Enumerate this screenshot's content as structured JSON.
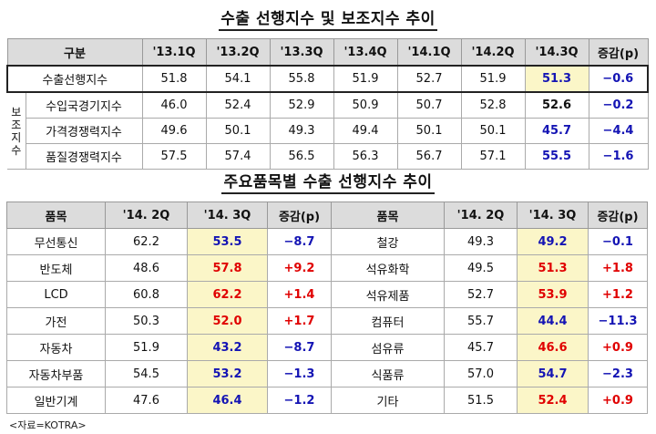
{
  "table1": {
    "title": "수출 선행지수 및 보조지수 추이",
    "headers": [
      "구분",
      "'13.1Q",
      "'13.2Q",
      "'13.3Q",
      "'13.4Q",
      "'14.1Q",
      "'14.2Q",
      "'14.3Q",
      "증감(p)"
    ],
    "group_label": "보조지수",
    "main_row": {
      "label": "수출선행지수",
      "values": [
        "51.8",
        "54.1",
        "55.8",
        "51.9",
        "52.7",
        "51.9",
        "51.3"
      ],
      "change": "−0.6"
    },
    "sub_rows": [
      {
        "label": "수입국경기지수",
        "values": [
          "46.0",
          "52.4",
          "52.9",
          "50.9",
          "50.7",
          "52.8",
          "52.6"
        ],
        "change": "−0.2"
      },
      {
        "label": "가격경쟁력지수",
        "values": [
          "49.6",
          "50.1",
          "49.3",
          "49.4",
          "50.1",
          "50.1",
          "45.7"
        ],
        "change": "−4.4"
      },
      {
        "label": "품질경쟁력지수",
        "values": [
          "57.5",
          "57.4",
          "56.5",
          "56.3",
          "56.7",
          "57.1",
          "55.5"
        ],
        "change": "−1.6"
      }
    ]
  },
  "table2": {
    "title": "주요품목별 수출 선행지수 추이",
    "headers": [
      "품목",
      "'14. 2Q",
      "'14. 3Q",
      "증감(p)",
      "품목",
      "'14. 2Q",
      "'14. 3Q",
      "증감(p)"
    ],
    "rows": [
      {
        "l_item": "무선통신",
        "l_q2": "62.2",
        "l_q3": "53.5",
        "l_chg": "−8.7",
        "r_item": "철강",
        "r_q2": "49.3",
        "r_q3": "49.2",
        "r_chg": "−0.1"
      },
      {
        "l_item": "반도체",
        "l_q2": "48.6",
        "l_q3": "57.8",
        "l_chg": "+9.2",
        "r_item": "석유화학",
        "r_q2": "49.5",
        "r_q3": "51.3",
        "r_chg": "+1.8"
      },
      {
        "l_item": "LCD",
        "l_q2": "60.8",
        "l_q3": "62.2",
        "l_chg": "+1.4",
        "r_item": "석유제품",
        "r_q2": "52.7",
        "r_q3": "53.9",
        "r_chg": "+1.2"
      },
      {
        "l_item": "가전",
        "l_q2": "50.3",
        "l_q3": "52.0",
        "l_chg": "+1.7",
        "r_item": "컴퓨터",
        "r_q2": "55.7",
        "r_q3": "44.4",
        "r_chg": "−11.3"
      },
      {
        "l_item": "자동차",
        "l_q2": "51.9",
        "l_q3": "43.2",
        "l_chg": "−8.7",
        "r_item": "섬유류",
        "r_q2": "45.7",
        "r_q3": "46.6",
        "r_chg": "+0.9"
      },
      {
        "l_item": "자동차부품",
        "l_q2": "54.5",
        "l_q3": "53.2",
        "l_chg": "−1.3",
        "r_item": "식품류",
        "r_q2": "57.0",
        "r_q3": "54.7",
        "r_chg": "−2.3"
      },
      {
        "l_item": "일반기계",
        "l_q2": "47.6",
        "l_q3": "46.4",
        "l_chg": "−1.2",
        "r_item": "기타",
        "r_q2": "51.5",
        "r_q3": "52.4",
        "r_chg": "+0.9"
      }
    ]
  },
  "colors": {
    "highlight": "#fbf6c8",
    "increase": "#e00000",
    "decrease": "#1414b4",
    "header": "#dcdcdc"
  },
  "source": "<자료=KOTRA>"
}
